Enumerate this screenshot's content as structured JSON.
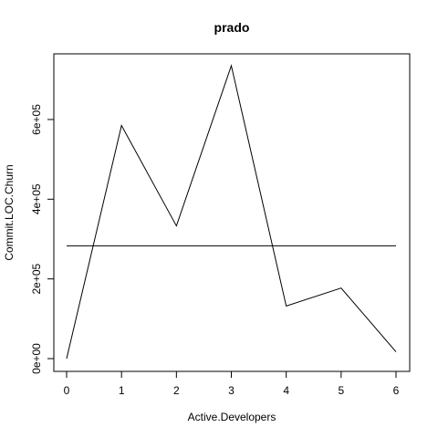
{
  "chart_data": {
    "type": "line",
    "title": "prado",
    "xlabel": "Active.Developers",
    "ylabel": "Commit.LOC.Churn",
    "xlim": [
      0,
      6
    ],
    "ylim": [
      0,
      735000
    ],
    "x_ticks": [
      0,
      1,
      2,
      3,
      4,
      5,
      6
    ],
    "x_tick_labels": [
      "0",
      "1",
      "2",
      "3",
      "4",
      "5",
      "6"
    ],
    "y_ticks": [
      0,
      200000,
      400000,
      600000
    ],
    "y_tick_labels": [
      "0e+00",
      "2e+05",
      "4e+05",
      "6e+05"
    ],
    "grid": false,
    "legend": "none",
    "series": [
      {
        "x": [
          0,
          1,
          2,
          3,
          4,
          5,
          6
        ],
        "values": [
          0,
          585000,
          333000,
          735000,
          132000,
          177000,
          17000
        ]
      }
    ],
    "reference_line": {
      "y": 283000
    }
  }
}
